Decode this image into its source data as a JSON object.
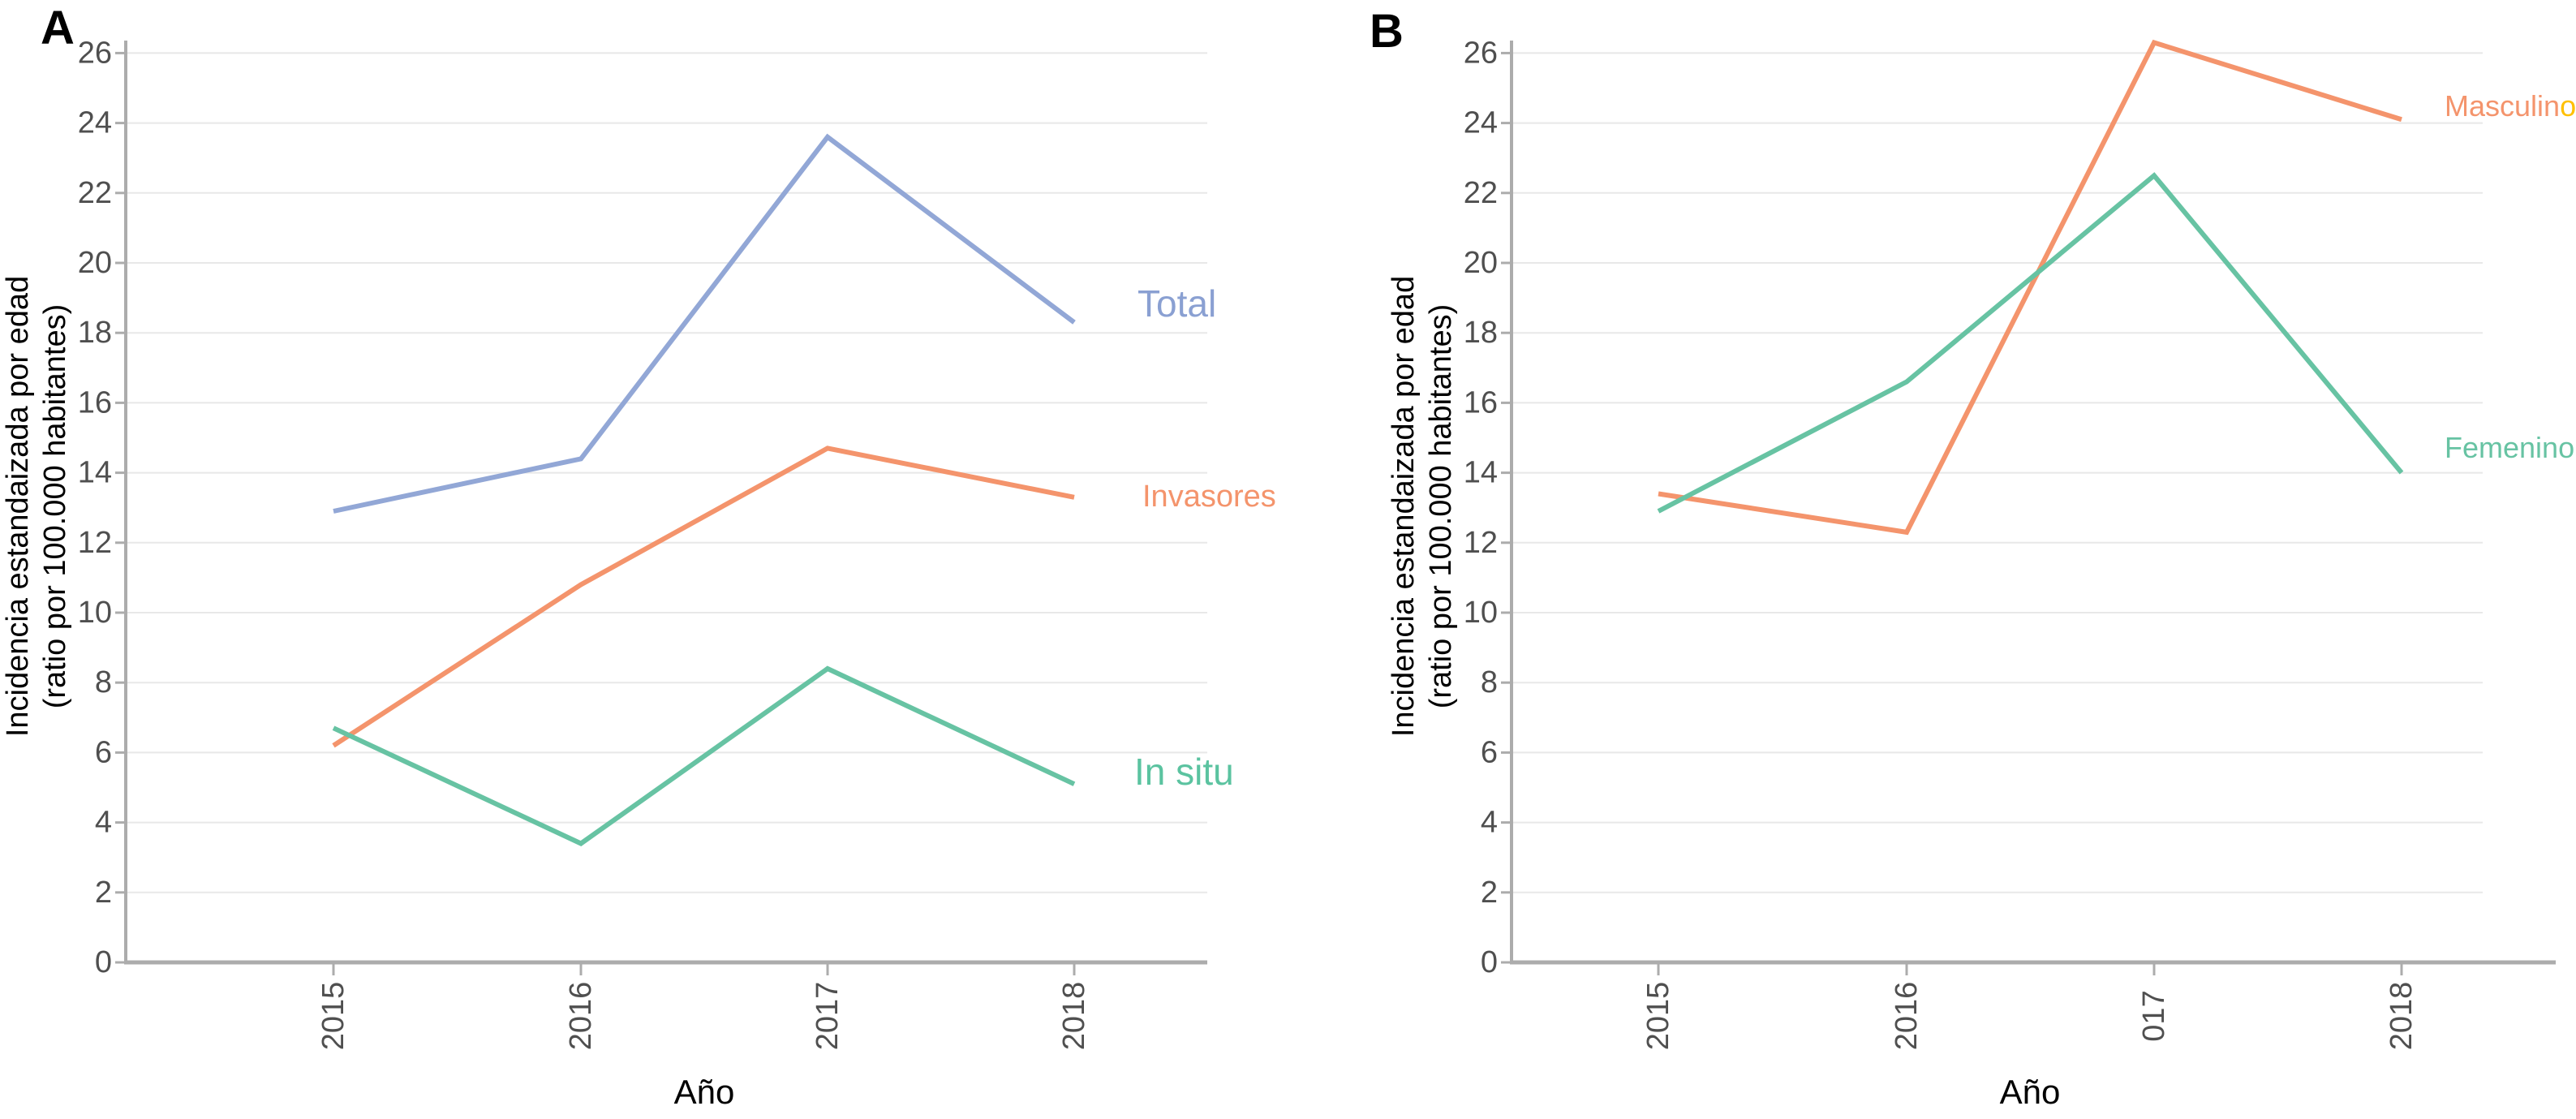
{
  "figure_background": "#FFFFFF",
  "colors": {
    "axis_line": "#ACACAC",
    "gridline": "#E8E8E8",
    "tick_label_text": "#4F4F4F",
    "axis_title_text": "#000000",
    "panel_letter_text": "#000000",
    "total_series": "#92A7D6",
    "invasores_series": "#F4946C",
    "in_situ_series": "#67C3A3",
    "masculino_series": "#F4946C",
    "femenino_series": "#67C3A3",
    "masculino_label_o_suffix": "#FFC000"
  },
  "chart_data": [
    {
      "panel_label": "A",
      "type": "line",
      "categories": [
        "2015",
        "2016",
        "2017",
        "2018"
      ],
      "xlabel": "Año",
      "ylabel_lines": [
        "Incidencia estandaizada por edad",
        "(ratio por 100.000 habitantes)"
      ],
      "ylim": [
        0,
        26
      ],
      "yticks": [
        0,
        2,
        4,
        6,
        8,
        10,
        12,
        14,
        16,
        18,
        20,
        22,
        24,
        26
      ],
      "grid": true,
      "legend_position": "right-of-line-end",
      "series": [
        {
          "name": "Total",
          "color": "#92A7D6",
          "values": [
            12.9,
            14.4,
            23.6,
            18.3
          ],
          "label_parts": [
            {
              "text": "Total",
              "color": "#8AA0D2"
            }
          ]
        },
        {
          "name": "Invasores",
          "color": "#F4946C",
          "values": [
            6.2,
            10.8,
            14.7,
            13.3
          ],
          "label_parts": [
            {
              "text": "Invasores",
              "color": "#F4946C"
            }
          ]
        },
        {
          "name": "In situ",
          "color": "#67C3A3",
          "values": [
            6.7,
            3.4,
            8.4,
            5.1
          ],
          "label_parts": [
            {
              "text": "In situ",
              "color": "#5BC3A0"
            }
          ]
        }
      ]
    },
    {
      "panel_label": "B",
      "type": "line",
      "categories": [
        "2015",
        "2016",
        "017",
        "2018"
      ],
      "xlabel": "Año",
      "ylabel_lines": [
        "Incidencia estandaizada por edad",
        "(ratio por 100.000 habitantes)"
      ],
      "ylim": [
        0,
        26
      ],
      "yticks": [
        0,
        2,
        4,
        6,
        8,
        10,
        12,
        14,
        16,
        18,
        20,
        22,
        24,
        26
      ],
      "grid": true,
      "legend_position": "right-of-line-end",
      "series": [
        {
          "name": "Masculino",
          "color": "#F4946C",
          "values": [
            13.4,
            12.3,
            26.3,
            24.1
          ],
          "label_parts": [
            {
              "text": "Masculin",
              "color": "#F4946C"
            },
            {
              "text": "o",
              "color": "#FFC000"
            }
          ]
        },
        {
          "name": "Femenino",
          "color": "#67C3A3",
          "values": [
            12.9,
            16.6,
            22.5,
            14.0
          ],
          "label_parts": [
            {
              "text": "Femenino",
              "color": "#67C3A3"
            }
          ]
        }
      ]
    }
  ]
}
